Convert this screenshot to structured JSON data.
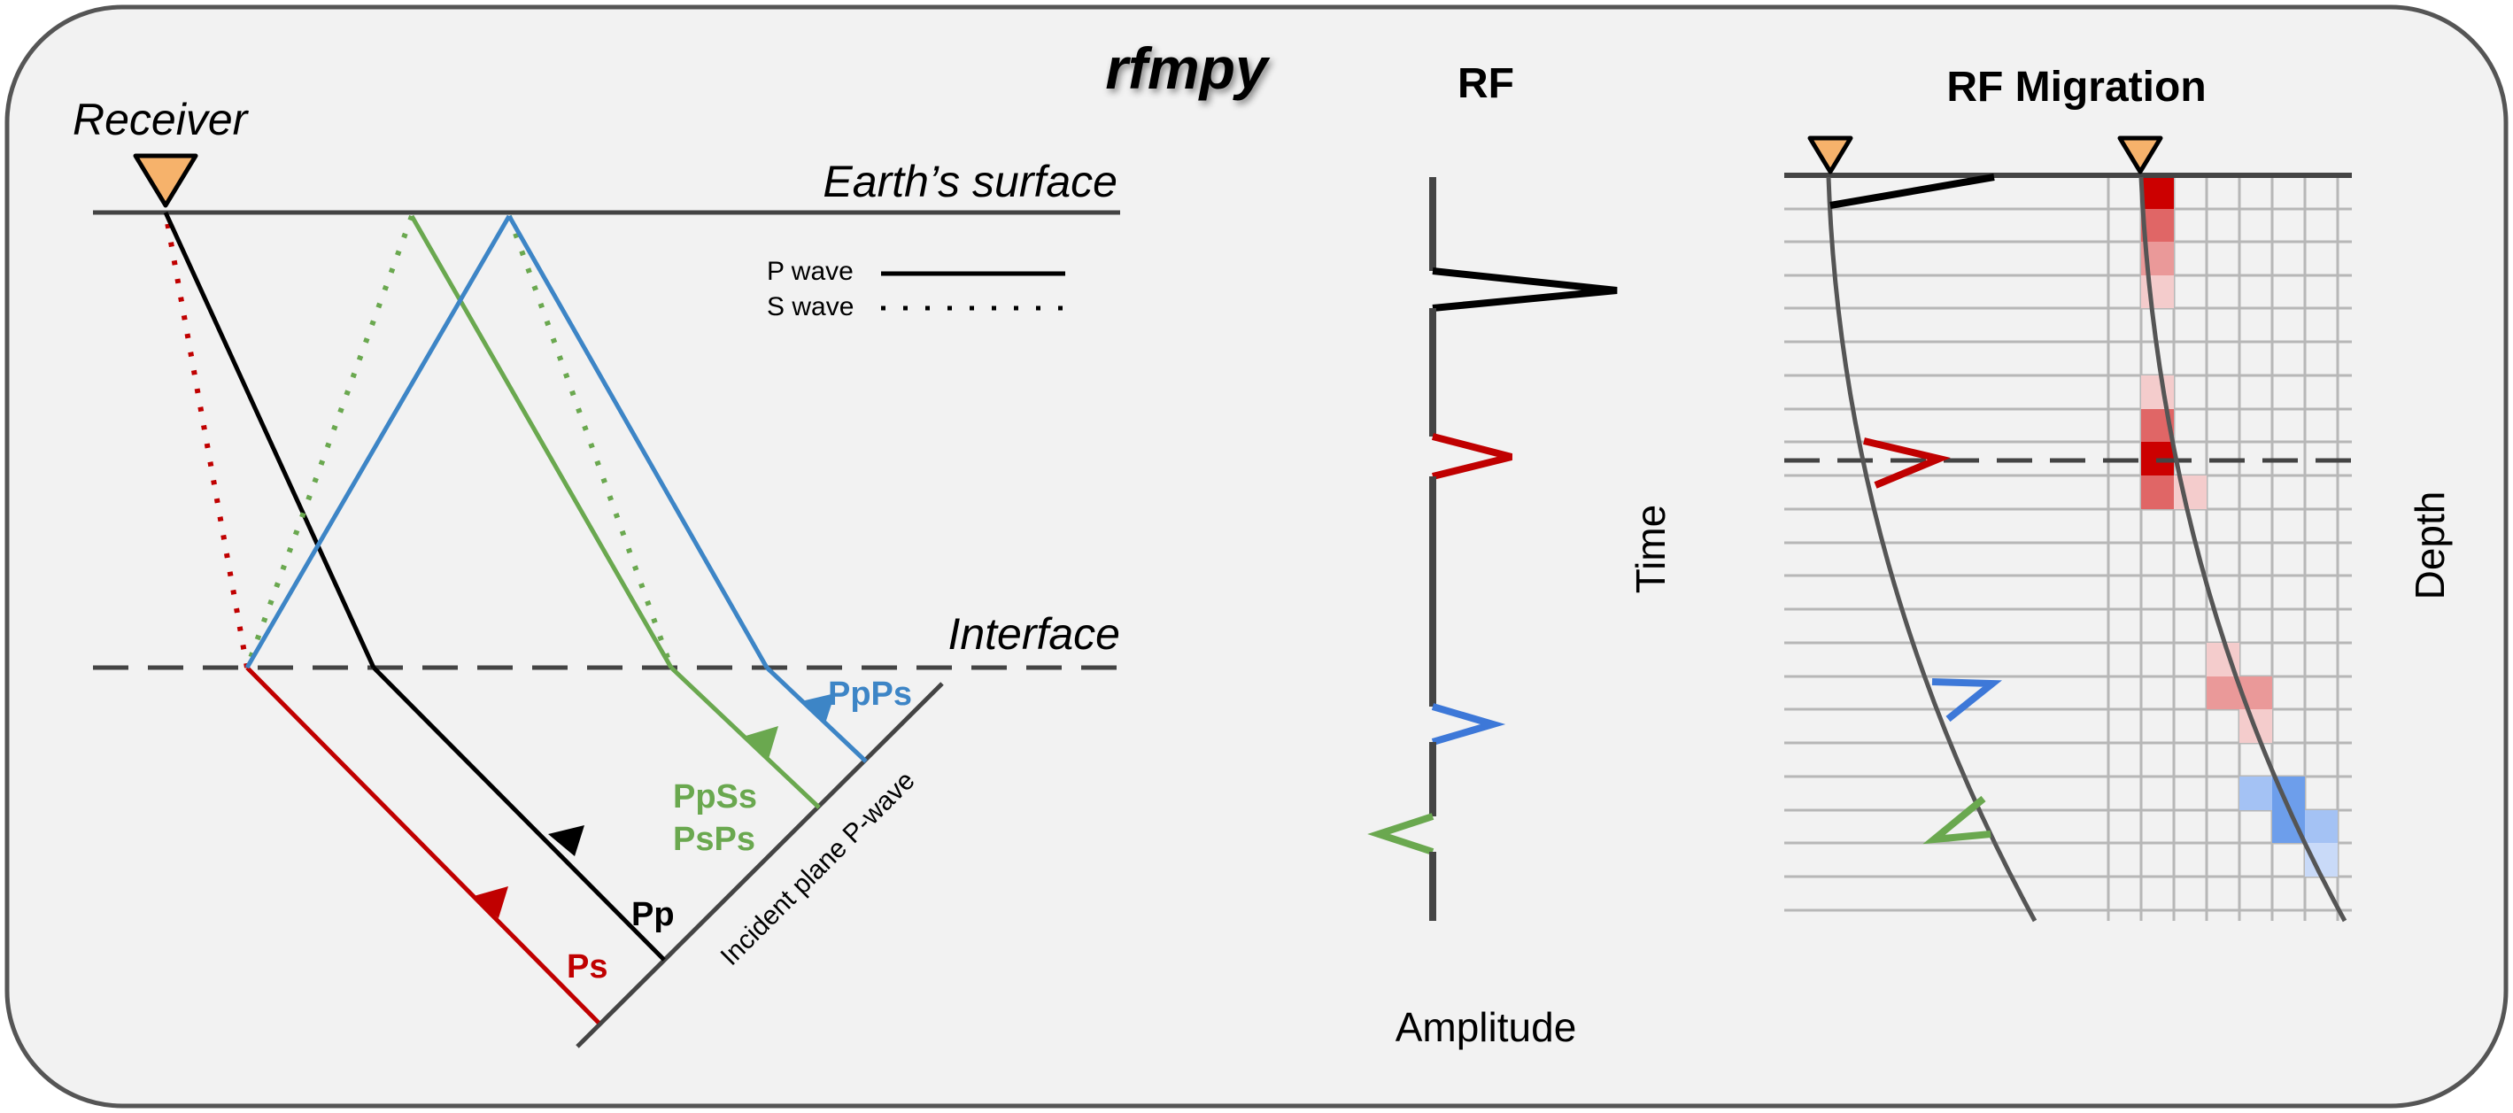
{
  "title": "rfmpy",
  "ray_diagram": {
    "receiver_label": "Receiver",
    "surface_label": "Earth’s surface",
    "interface_label": "Interface",
    "incident_plane_label": "Incident plane P-wave",
    "legend": {
      "p_wave": "P wave",
      "s_wave": "S wave"
    },
    "phases": {
      "ps": "Ps",
      "pp": "Pp",
      "ppss": "PpSs",
      "psps": "PsPs",
      "ppps": "PpPs"
    }
  },
  "rf_panel": {
    "title": "RF",
    "x_label": "Amplitude",
    "y_label": "Time"
  },
  "migration_panel": {
    "title": "RF Migration",
    "y_label": "Depth"
  },
  "colors": {
    "p_wave": "#000000",
    "ps": "#c00000",
    "ppss_psps": "#6aa84f",
    "ppps": "#3d85c6",
    "receiver_marker": "#f6b26b",
    "migration_positive": "#cc0000",
    "migration_negative": "#3d78d8",
    "background": "#f2f2f2"
  }
}
